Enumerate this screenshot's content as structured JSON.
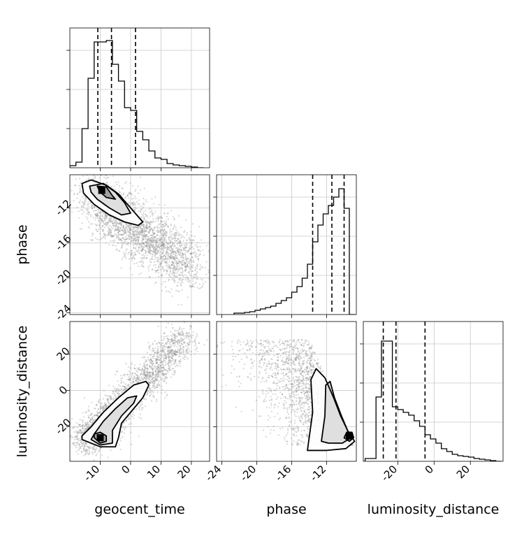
{
  "chart_data": [
    {
      "type": "histogram",
      "parameter": "geocent_time",
      "xlim": [
        -20,
        26
      ],
      "x_ticks": [
        -10,
        0,
        10,
        20
      ],
      "quantiles": [
        -10.8,
        -6.3,
        1.6
      ],
      "bin_edges": [
        -20,
        -18,
        -16,
        -14,
        -12,
        -10,
        -8,
        -6,
        -4,
        -2,
        0,
        2,
        4,
        6,
        8,
        10,
        12,
        14,
        16,
        18,
        20,
        22,
        24
      ],
      "counts": [
        0.015,
        0.04,
        0.28,
        0.64,
        0.9,
        0.9,
        0.91,
        0.74,
        0.62,
        0.43,
        0.41,
        0.26,
        0.2,
        0.12,
        0.07,
        0.06,
        0.03,
        0.02,
        0.015,
        0.01,
        0.005,
        0.0
      ]
    },
    {
      "type": "histogram",
      "parameter": "phase",
      "xlim": [
        -24.6,
        -8.6
      ],
      "x_ticks": [
        -24,
        -20,
        -16,
        -12
      ],
      "quantiles": [
        -13.6,
        -11.4,
        -10.0
      ],
      "bin_edges": [
        -22.6,
        -22.0,
        -21.4,
        -20.8,
        -20.2,
        -19.6,
        -19.0,
        -18.4,
        -17.8,
        -17.2,
        -16.6,
        -16.0,
        -15.4,
        -14.8,
        -14.2,
        -13.6,
        -13.0,
        -12.4,
        -11.8,
        -11.2,
        -10.6,
        -10.0,
        -9.4,
        -8.8
      ],
      "counts": [
        0.01,
        0.01,
        0.015,
        0.02,
        0.03,
        0.04,
        0.05,
        0.06,
        0.08,
        0.1,
        0.12,
        0.16,
        0.2,
        0.26,
        0.36,
        0.52,
        0.64,
        0.72,
        0.78,
        0.84,
        0.9,
        0.76,
        0.0
      ]
    },
    {
      "type": "histogram",
      "parameter": "luminosity_distance",
      "xlim": [
        -39,
        38
      ],
      "x_ticks": [
        -20,
        0,
        20
      ],
      "quantiles": [
        -28,
        -21,
        -5
      ],
      "bin_edges": [
        -38,
        -35,
        -32,
        -29,
        -26,
        -23,
        -20,
        -17,
        -14,
        -11,
        -8,
        -5,
        -2,
        1,
        4,
        7,
        10,
        13,
        16,
        19,
        22,
        25,
        28,
        31,
        34,
        37
      ],
      "counts": [
        0.02,
        0.02,
        0.46,
        0.86,
        0.86,
        0.39,
        0.37,
        0.35,
        0.33,
        0.29,
        0.25,
        0.19,
        0.16,
        0.13,
        0.09,
        0.07,
        0.05,
        0.04,
        0.035,
        0.03,
        0.02,
        0.015,
        0.01,
        0.005,
        0.0
      ]
    },
    {
      "type": "scatter",
      "x": "geocent_time",
      "y": "phase",
      "xlim": [
        -20,
        26
      ],
      "ylim": [
        -24.2,
        -8.2
      ],
      "x_ticks": [
        -10,
        0,
        10,
        20
      ],
      "y_ticks": [
        -24,
        -20,
        -16,
        -12
      ],
      "peak": {
        "x": -9.5,
        "y": -10
      },
      "contours": [
        [
          [
            -16,
            -9.2
          ],
          [
            -13,
            -8.8
          ],
          [
            -8,
            -9.4
          ],
          [
            -4,
            -10.4
          ],
          [
            -1,
            -11.6
          ],
          [
            2,
            -12.8
          ],
          [
            4,
            -13.6
          ],
          [
            2.5,
            -14.0
          ],
          [
            -2,
            -13.6
          ],
          [
            -7,
            -12.8
          ],
          [
            -12,
            -11.6
          ],
          [
            -15.5,
            -10.3
          ]
        ],
        [
          [
            -13.5,
            -9.5
          ],
          [
            -9,
            -9.2
          ],
          [
            -5,
            -10.2
          ],
          [
            -2,
            -11.4
          ],
          [
            0,
            -12.6
          ],
          [
            -3,
            -12.8
          ],
          [
            -7,
            -12.0
          ],
          [
            -11,
            -11.0
          ],
          [
            -13,
            -10.2
          ]
        ],
        [
          [
            -11,
            -9.5
          ],
          [
            -8,
            -9.6
          ],
          [
            -6,
            -10.6
          ],
          [
            -5,
            -11.0
          ],
          [
            -8,
            -10.8
          ],
          [
            -10,
            -10.2
          ]
        ]
      ]
    },
    {
      "type": "scatter",
      "x": "geocent_time",
      "y": "luminosity_distance",
      "xlim": [
        -20,
        26
      ],
      "ylim": [
        -39,
        38
      ],
      "x_ticks": [
        -10,
        0,
        10,
        20
      ],
      "y_ticks": [
        -20,
        0,
        20
      ],
      "peak": {
        "x": -10,
        "y": -26
      },
      "contours": [
        [
          [
            -16,
            -27
          ],
          [
            -10,
            -31
          ],
          [
            -5,
            -31
          ],
          [
            -4,
            -26
          ],
          [
            -3,
            -18
          ],
          [
            0,
            -12
          ],
          [
            4,
            -4
          ],
          [
            6,
            3
          ],
          [
            5,
            5
          ],
          [
            1,
            3
          ],
          [
            -4,
            -4
          ],
          [
            -9,
            -12
          ],
          [
            -13,
            -20
          ],
          [
            -16,
            -25
          ]
        ],
        [
          [
            -13,
            -27
          ],
          [
            -10,
            -30
          ],
          [
            -6,
            -29
          ],
          [
            -6,
            -22
          ],
          [
            -3,
            -14
          ],
          [
            1,
            -7
          ],
          [
            2,
            -3
          ],
          [
            -1,
            -4
          ],
          [
            -5,
            -10
          ],
          [
            -9,
            -17
          ],
          [
            -12,
            -24
          ]
        ],
        [
          [
            -12,
            -26
          ],
          [
            -10,
            -29
          ],
          [
            -8,
            -28
          ],
          [
            -8,
            -25
          ],
          [
            -10,
            -23
          ],
          [
            -12,
            -24
          ]
        ]
      ]
    },
    {
      "type": "scatter",
      "x": "phase",
      "y": "luminosity_distance",
      "xlim": [
        -24.6,
        -8.6
      ],
      "ylim": [
        -39,
        38
      ],
      "x_ticks": [
        -24,
        -20,
        -16,
        -12
      ],
      "y_ticks": [
        -20,
        0,
        20
      ],
      "peak": {
        "x": -9.4,
        "y": -25
      },
      "contours": [
        [
          [
            -14.2,
            -33
          ],
          [
            -13.6,
            -12
          ],
          [
            -13.8,
            6
          ],
          [
            -13.2,
            12
          ],
          [
            -12.2,
            7
          ],
          [
            -11.2,
            -4
          ],
          [
            -10.4,
            -14
          ],
          [
            -9.6,
            -22
          ],
          [
            -8.8,
            -28
          ],
          [
            -9.8,
            -32
          ],
          [
            -12,
            -33
          ]
        ],
        [
          [
            -12.6,
            -28
          ],
          [
            -12.2,
            -14
          ],
          [
            -12.1,
            3
          ],
          [
            -11.6,
            5
          ],
          [
            -11.1,
            -4
          ],
          [
            -10.3,
            -14
          ],
          [
            -9.6,
            -22
          ],
          [
            -9.2,
            -26
          ],
          [
            -10.2,
            -29
          ],
          [
            -11.8,
            -29
          ]
        ],
        [
          [
            -10.0,
            -26
          ],
          [
            -9.7,
            -23
          ],
          [
            -9.1,
            -23
          ],
          [
            -8.9,
            -26
          ],
          [
            -9.4,
            -28
          ]
        ]
      ]
    }
  ],
  "axis_labels": {
    "x": [
      "geocent_time",
      "phase",
      "luminosity_distance"
    ],
    "y": [
      "phase",
      "luminosity_distance"
    ]
  }
}
